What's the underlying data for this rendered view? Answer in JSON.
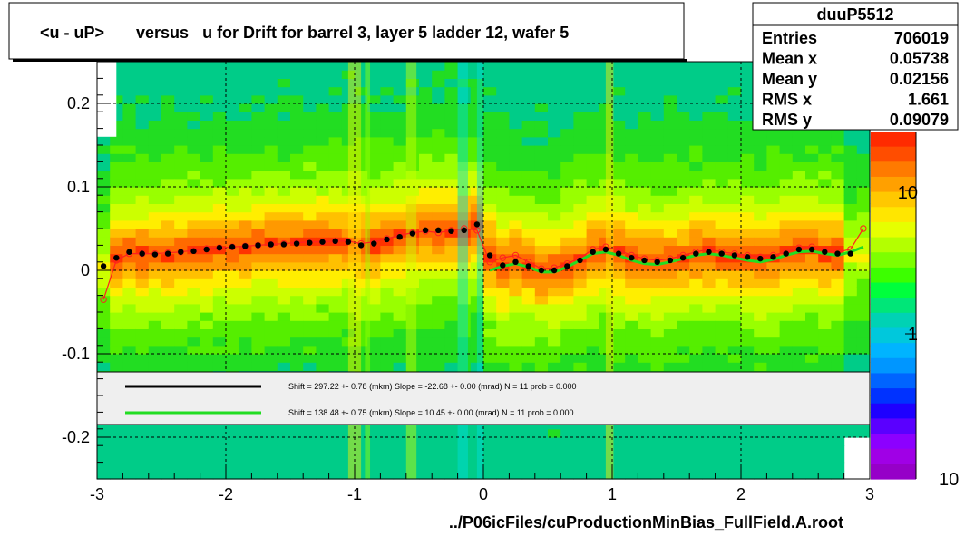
{
  "title": "<u - uP>       versus   u for Drift for barrel 3, layer 5 ladder 12, wafer 5",
  "footer": "../P06icFiles/cuProductionMinBias_FullField.A.root",
  "stats": {
    "name": "duuP5512",
    "rows": [
      {
        "label": "Entries",
        "value": "706019"
      },
      {
        "label": "Mean x",
        "value": "0.05738"
      },
      {
        "label": "Mean y",
        "value": "0.02156"
      },
      {
        "label": "RMS x",
        "value": "1.661"
      },
      {
        "label": "RMS y",
        "value": "0.09079"
      }
    ]
  },
  "fit_legend": [
    {
      "color": "#000000",
      "text": "Shift =   297.22 +- 0.78 (mkm) Slope =   -22.68 +- 0.00 (mrad)  N = 11 prob = 0.000"
    },
    {
      "color": "#22dd22",
      "text": "Shift =   138.48 +- 0.75 (mkm) Slope =    10.45 +- 0.00 (mrad)  N = 11 prob = 0.000"
    }
  ],
  "colors": {
    "profile_black": "#000000",
    "profile_red": "#ff2020",
    "fit_green": "#22dd22"
  },
  "chart_data": {
    "type": "heatmap",
    "xlim": [
      -3,
      3
    ],
    "ylim": [
      -0.25,
      0.25
    ],
    "x_ticks": [
      -3,
      -2,
      -1,
      0,
      1,
      2,
      3
    ],
    "y_ticks": [
      -0.2,
      -0.1,
      0,
      0.1,
      0.2
    ],
    "x_tick_labels": [
      "-3",
      "-2",
      "-1",
      "0",
      "1",
      "2",
      "3"
    ],
    "y_tick_labels": [
      "-0.2",
      "-0.1",
      "0",
      "0.1",
      "0.2"
    ],
    "z_scale": "log",
    "z_tick_labels": [
      "10",
      "1",
      "10"
    ],
    "grid": true,
    "series": [
      {
        "name": "black",
        "points": [
          [
            -2.95,
            0.005
          ],
          [
            -2.85,
            0.015
          ],
          [
            -2.75,
            0.022
          ],
          [
            -2.65,
            0.02
          ],
          [
            -2.55,
            0.019
          ],
          [
            -2.45,
            0.02
          ],
          [
            -2.35,
            0.022
          ],
          [
            -2.25,
            0.023
          ],
          [
            -2.15,
            0.025
          ],
          [
            -2.05,
            0.027
          ],
          [
            -1.95,
            0.028
          ],
          [
            -1.85,
            0.029
          ],
          [
            -1.75,
            0.03
          ],
          [
            -1.65,
            0.031
          ],
          [
            -1.55,
            0.031
          ],
          [
            -1.45,
            0.032
          ],
          [
            -1.35,
            0.033
          ],
          [
            -1.25,
            0.034
          ],
          [
            -1.15,
            0.035
          ],
          [
            -1.05,
            0.034
          ],
          [
            -0.95,
            0.03
          ],
          [
            -0.85,
            0.032
          ],
          [
            -0.75,
            0.037
          ],
          [
            -0.65,
            0.04
          ],
          [
            -0.55,
            0.044
          ],
          [
            -0.45,
            0.048
          ],
          [
            -0.35,
            0.048
          ],
          [
            -0.25,
            0.047
          ],
          [
            -0.15,
            0.048
          ],
          [
            -0.05,
            0.055
          ],
          [
            0.05,
            0.018
          ],
          [
            0.15,
            0.006
          ],
          [
            0.25,
            0.01
          ],
          [
            0.35,
            0.005
          ],
          [
            0.45,
            0.0
          ],
          [
            0.55,
            0.0
          ],
          [
            0.65,
            0.005
          ],
          [
            0.75,
            0.012
          ],
          [
            0.85,
            0.022
          ],
          [
            0.95,
            0.025
          ],
          [
            1.05,
            0.02
          ],
          [
            1.15,
            0.015
          ],
          [
            1.25,
            0.012
          ],
          [
            1.35,
            0.01
          ],
          [
            1.45,
            0.012
          ],
          [
            1.55,
            0.015
          ],
          [
            1.65,
            0.02
          ],
          [
            1.75,
            0.022
          ],
          [
            1.85,
            0.02
          ],
          [
            1.95,
            0.018
          ],
          [
            2.05,
            0.016
          ],
          [
            2.15,
            0.014
          ],
          [
            2.25,
            0.016
          ],
          [
            2.35,
            0.02
          ],
          [
            2.45,
            0.025
          ],
          [
            2.55,
            0.025
          ],
          [
            2.65,
            0.022
          ],
          [
            2.75,
            0.02
          ],
          [
            2.85,
            0.02
          ]
        ]
      },
      {
        "name": "red",
        "points": [
          [
            -2.95,
            -0.035
          ],
          [
            -2.85,
            0.012
          ],
          [
            -2.75,
            0.02
          ],
          [
            -2.65,
            0.02
          ],
          [
            -2.55,
            0.02
          ],
          [
            -2.45,
            0.021
          ],
          [
            -2.35,
            0.022
          ],
          [
            -2.25,
            0.024
          ],
          [
            -2.15,
            0.026
          ],
          [
            -2.05,
            0.027
          ],
          [
            -1.95,
            0.028
          ],
          [
            -1.85,
            0.029
          ],
          [
            -1.75,
            0.03
          ],
          [
            -1.65,
            0.031
          ],
          [
            -1.55,
            0.032
          ],
          [
            -1.45,
            0.033
          ],
          [
            -1.35,
            0.034
          ],
          [
            -1.25,
            0.034
          ],
          [
            -1.15,
            0.035
          ],
          [
            -1.05,
            0.035
          ],
          [
            -0.95,
            0.032
          ],
          [
            -0.85,
            0.034
          ],
          [
            -0.75,
            0.038
          ],
          [
            -0.65,
            0.042
          ],
          [
            -0.55,
            0.045
          ],
          [
            -0.45,
            0.047
          ],
          [
            -0.35,
            0.045
          ],
          [
            -0.25,
            0.048
          ],
          [
            -0.15,
            0.05
          ],
          [
            -0.05,
            0.048
          ],
          [
            0.05,
            0.01
          ],
          [
            0.15,
            0.015
          ],
          [
            0.25,
            0.018
          ],
          [
            0.35,
            0.01
          ],
          [
            0.45,
            0.002
          ],
          [
            0.55,
            0.003
          ],
          [
            0.65,
            0.008
          ],
          [
            0.75,
            0.015
          ],
          [
            0.85,
            0.025
          ],
          [
            0.95,
            0.028
          ],
          [
            1.05,
            0.024
          ],
          [
            1.15,
            0.018
          ],
          [
            1.25,
            0.014
          ],
          [
            1.35,
            0.012
          ],
          [
            1.45,
            0.014
          ],
          [
            1.55,
            0.018
          ],
          [
            1.65,
            0.022
          ],
          [
            1.75,
            0.025
          ],
          [
            1.85,
            0.022
          ],
          [
            1.95,
            0.02
          ],
          [
            2.05,
            0.018
          ],
          [
            2.15,
            0.016
          ],
          [
            2.25,
            0.018
          ],
          [
            2.35,
            0.022
          ],
          [
            2.45,
            0.027
          ],
          [
            2.55,
            0.028
          ],
          [
            2.65,
            0.024
          ],
          [
            2.75,
            0.022
          ],
          [
            2.85,
            0.025
          ],
          [
            2.95,
            0.05
          ]
        ]
      },
      {
        "name": "green",
        "points": [
          [
            0.05,
            0.0
          ],
          [
            0.15,
            0.005
          ],
          [
            0.25,
            0.008
          ],
          [
            0.35,
            0.004
          ],
          [
            0.45,
            -0.002
          ],
          [
            0.55,
            -0.002
          ],
          [
            0.65,
            0.004
          ],
          [
            0.75,
            0.012
          ],
          [
            0.85,
            0.02
          ],
          [
            0.95,
            0.022
          ],
          [
            1.05,
            0.018
          ],
          [
            1.15,
            0.012
          ],
          [
            1.25,
            0.008
          ],
          [
            1.35,
            0.007
          ],
          [
            1.45,
            0.01
          ],
          [
            1.55,
            0.014
          ],
          [
            1.65,
            0.018
          ],
          [
            1.75,
            0.02
          ],
          [
            1.85,
            0.018
          ],
          [
            1.95,
            0.015
          ],
          [
            2.05,
            0.012
          ],
          [
            2.15,
            0.01
          ],
          [
            2.25,
            0.013
          ],
          [
            2.35,
            0.018
          ],
          [
            2.45,
            0.022
          ],
          [
            2.55,
            0.023
          ],
          [
            2.65,
            0.02
          ],
          [
            2.75,
            0.018
          ],
          [
            2.85,
            0.022
          ],
          [
            2.95,
            0.028
          ]
        ]
      }
    ]
  }
}
